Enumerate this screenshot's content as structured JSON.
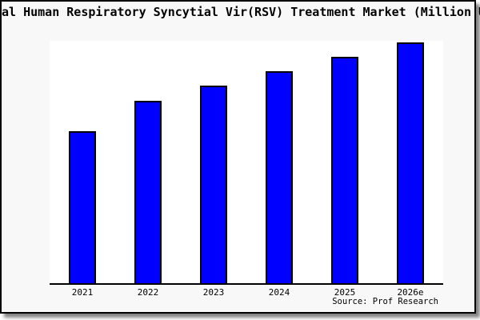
{
  "chart": {
    "title": "Global Human Respiratory Syncytial Vir(RSV) Treatment Market (Million USD)",
    "source": "Source: Prof Research",
    "bar_color": "#0000FF",
    "bar_border_color": "#000000",
    "canvas_bg": "#f8f8f8",
    "plot_bg": "#ffffff",
    "frame_border_color": "#000000"
  },
  "chart_data": {
    "type": "bar",
    "title": "Global Human Respiratory Syncytial Vir(RSV) Treatment Market (Million USD)",
    "categories": [
      "2021",
      "2022",
      "2023",
      "2024",
      "2025",
      "2026e"
    ],
    "values": [
      63,
      75.5,
      81.8,
      87.9,
      94,
      100
    ],
    "xlabel": "",
    "ylabel": "",
    "ylim": [
      0,
      100
    ],
    "units": "relative (no y-axis tick labels visible; 2026e bar = 100)",
    "grid": false,
    "legend": false,
    "annotation": "Source: Prof Research"
  }
}
